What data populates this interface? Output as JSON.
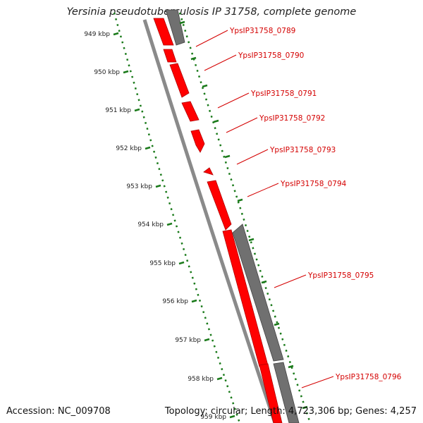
{
  "title": "Yersinia pseudotuberculosis IP 31758, complete genome",
  "accession": "Accession: NC_009708",
  "summary": "Topology: circular; Length: 4,723,306 bp; Genes: 4,257",
  "colors": {
    "forward_gene": "#ff0000",
    "reverse_gene": "#707070",
    "backbone": "#808080",
    "ruler": "#1a7a1a",
    "label": "#d40000"
  },
  "ruler_labels": [
    "949 kbp",
    "950 kbp",
    "951 kbp",
    "952 kbp",
    "953 kbp",
    "954 kbp",
    "955 kbp",
    "956 kbp",
    "957 kbp",
    "958 kbp",
    "959 kbp"
  ],
  "genes": [
    {
      "label": "YpsIP31758_0789"
    },
    {
      "label": "YpsIP31758_0790"
    },
    {
      "label": "YpsIP31758_0791"
    },
    {
      "label": "YpsIP31758_0792"
    },
    {
      "label": "YpsIP31758_0793"
    },
    {
      "label": "YpsIP31758_0794"
    },
    {
      "label": "YpsIP31758_0795"
    },
    {
      "label": "YpsIP31758_0796"
    }
  ]
}
